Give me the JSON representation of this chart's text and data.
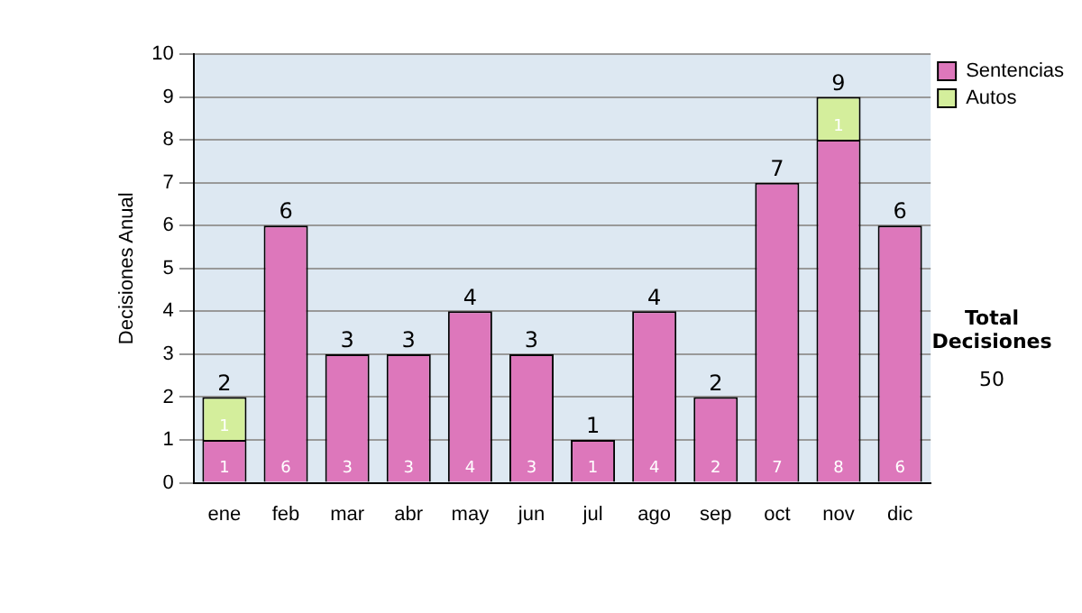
{
  "chart_data": {
    "type": "bar",
    "ylabel": "Decisiones Anual",
    "categories": [
      "ene",
      "feb",
      "mar",
      "abr",
      "may",
      "jun",
      "jul",
      "ago",
      "sep",
      "oct",
      "nov",
      "dic"
    ],
    "series": [
      {
        "name": "Sentencias",
        "color": "#dd77bb",
        "values": [
          1,
          6,
          3,
          3,
          4,
          3,
          1,
          4,
          2,
          7,
          8,
          6
        ]
      },
      {
        "name": "Autos",
        "color": "#d4ee9c",
        "values": [
          1,
          null,
          null,
          null,
          null,
          null,
          null,
          null,
          null,
          null,
          1,
          null
        ]
      }
    ],
    "stacked": true,
    "ylim": [
      0,
      10
    ],
    "yticks": [
      0,
      1,
      2,
      3,
      4,
      5,
      6,
      7,
      8,
      9,
      10
    ],
    "grid": "y",
    "legend": "right",
    "data_labels": true,
    "totals": [
      "2",
      "6",
      "3",
      "3",
      "4",
      "3",
      "1",
      "4",
      "2",
      "7",
      "9",
      "6"
    ],
    "annotations": [
      "Total Decisiones",
      "50"
    ]
  }
}
